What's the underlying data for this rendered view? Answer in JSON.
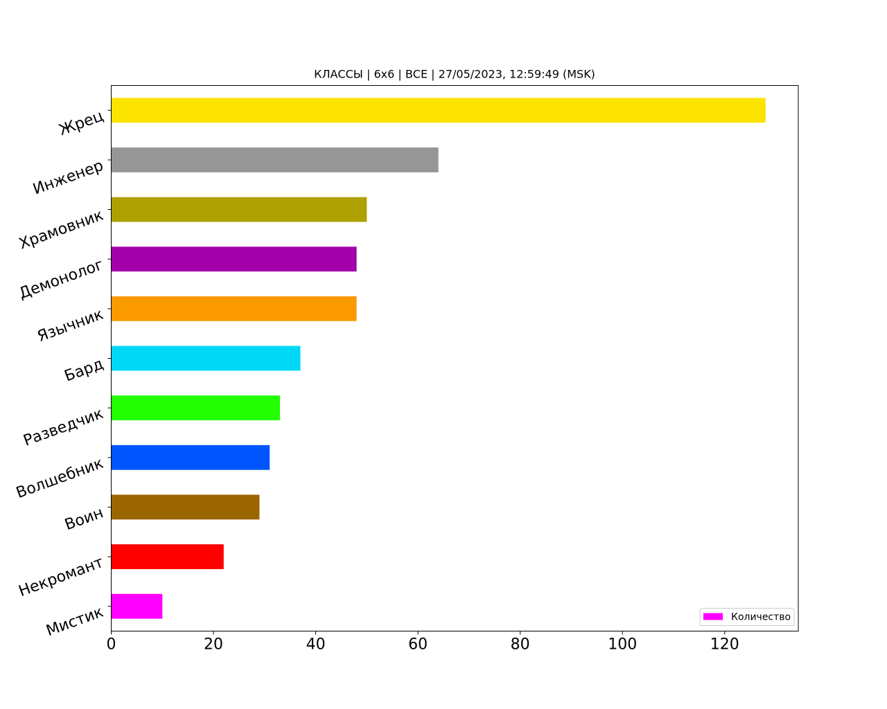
{
  "chart_data": {
    "type": "barh",
    "title": "КЛАССЫ | 6x6 | ВСЕ | 27/05/2023, 12:59:49 (MSK)",
    "categories": [
      "Мистик",
      "Некромант",
      "Воин",
      "Волшебник",
      "Разведчик",
      "Бард",
      "Язычник",
      "Демонолог",
      "Храмовник",
      "Инженер",
      "Жрец"
    ],
    "series": [
      {
        "name": "Количество",
        "values": [
          10,
          22,
          29,
          31,
          33,
          37,
          48,
          48,
          50,
          64,
          128
        ],
        "colors": [
          "#ff00ff",
          "#ff0000",
          "#9b6600",
          "#0055ff",
          "#22ff00",
          "#00d8f8",
          "#fb9900",
          "#a300ab",
          "#ada000",
          "#969696",
          "#fce300"
        ]
      }
    ],
    "xlim": [
      0,
      134.4
    ],
    "xticks": [
      0,
      20,
      40,
      60,
      80,
      100,
      120
    ],
    "legend": "lower right"
  }
}
